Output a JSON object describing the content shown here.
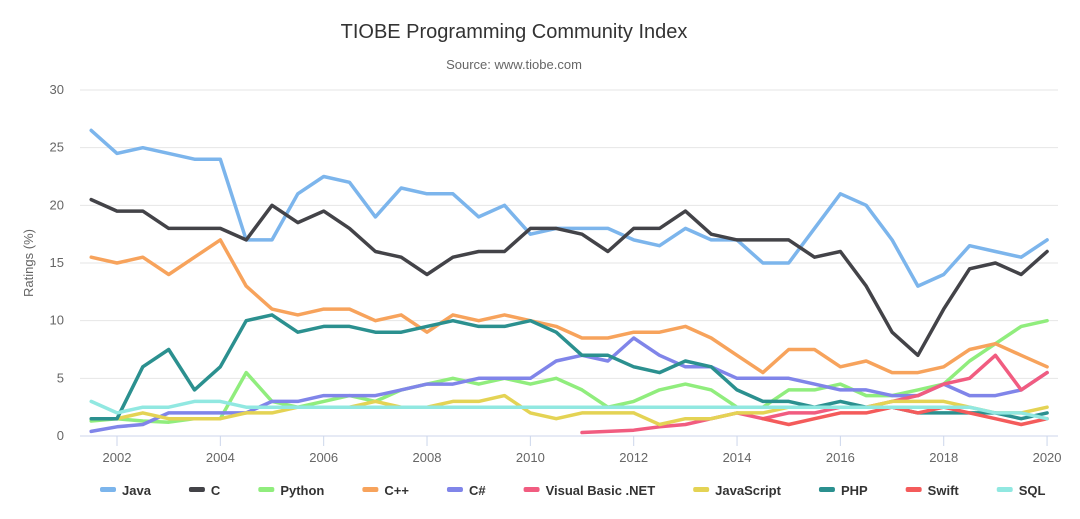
{
  "chart_data": {
    "type": "line",
    "title": "TIOBE Programming Community Index",
    "subtitle": "Source: www.tiobe.com",
    "xlabel": "",
    "ylabel": "Ratings (%)",
    "ylim": [
      0,
      30
    ],
    "xlim": [
      2001.4,
      2020.2
    ],
    "yticks": [
      0,
      5,
      10,
      15,
      20,
      25,
      30
    ],
    "xticks": [
      2002,
      2004,
      2006,
      2008,
      2010,
      2012,
      2014,
      2016,
      2018,
      2020
    ],
    "grid": true,
    "legend_position": "bottom",
    "x": [
      2001.5,
      2002,
      2002.5,
      2003,
      2003.5,
      2004,
      2004.5,
      2005,
      2005.5,
      2006,
      2006.5,
      2007,
      2007.5,
      2008,
      2008.5,
      2009,
      2009.5,
      2010,
      2010.5,
      2011,
      2011.5,
      2012,
      2012.5,
      2013,
      2013.5,
      2014,
      2014.5,
      2015,
      2015.5,
      2016,
      2016.5,
      2017,
      2017.5,
      2018,
      2018.5,
      2019,
      2019.5,
      2020
    ],
    "series": [
      {
        "name": "Java",
        "color": "#7cb5ec",
        "values": [
          26.5,
          24.5,
          25,
          24.5,
          24,
          24,
          17,
          17,
          21,
          22.5,
          22,
          19,
          21.5,
          21,
          21,
          19,
          20,
          17.5,
          18,
          18,
          18,
          17,
          16.5,
          18,
          17,
          17,
          15,
          15,
          18,
          21,
          20,
          17,
          13,
          14,
          16.5,
          16,
          15.5,
          17
        ]
      },
      {
        "name": "C",
        "color": "#434348",
        "values": [
          20.5,
          19.5,
          19.5,
          18,
          18,
          18,
          17,
          20,
          18.5,
          19.5,
          18,
          16,
          15.5,
          14,
          15.5,
          16,
          16,
          18,
          18,
          17.5,
          16,
          18,
          18,
          19.5,
          17.5,
          17,
          17,
          17,
          15.5,
          16,
          13,
          9,
          7,
          11,
          14.5,
          15,
          14,
          16
        ]
      },
      {
        "name": "Python",
        "color": "#90ed7d",
        "values": [
          1.3,
          1.5,
          1.3,
          1.2,
          1.5,
          1.5,
          5.5,
          3,
          2.5,
          3,
          3.5,
          3,
          4,
          4.5,
          5,
          4.5,
          5,
          4.5,
          5,
          4,
          2.5,
          3,
          4,
          4.5,
          4,
          2.5,
          2.5,
          4,
          4,
          4.5,
          3.5,
          3.5,
          4,
          4.5,
          6.5,
          8,
          9.5,
          10
        ]
      },
      {
        "name": "C++",
        "color": "#f7a35c",
        "values": [
          15.5,
          15,
          15.5,
          14,
          15.5,
          17,
          13,
          11,
          10.5,
          11,
          11,
          10,
          10.5,
          9,
          10.5,
          10,
          10.5,
          10,
          9.5,
          8.5,
          8.5,
          9,
          9,
          9.5,
          8.5,
          7,
          5.5,
          7.5,
          7.5,
          6,
          6.5,
          5.5,
          5.5,
          6,
          7.5,
          8,
          7,
          6
        ]
      },
      {
        "name": "C#",
        "color": "#8085e9",
        "values": [
          0.4,
          0.8,
          1,
          2,
          2,
          2,
          2,
          3,
          3,
          3.5,
          3.5,
          3.5,
          4,
          4.5,
          4.5,
          5,
          5,
          5,
          6.5,
          7,
          6.5,
          8.5,
          7,
          6,
          6,
          5,
          5,
          5,
          4.5,
          4,
          4,
          3.5,
          3.5,
          4.5,
          3.5,
          3.5,
          4,
          5.5
        ]
      },
      {
        "name": "Visual Basic .NET",
        "color": "#f15c80",
        "values": [
          null,
          null,
          null,
          null,
          null,
          null,
          null,
          null,
          null,
          null,
          null,
          null,
          null,
          null,
          null,
          null,
          null,
          null,
          null,
          0.3,
          0.4,
          0.5,
          0.8,
          1,
          1.5,
          2,
          1.5,
          2,
          2,
          2.5,
          2.5,
          3,
          3.5,
          4.5,
          5,
          7,
          4,
          5.5
        ]
      },
      {
        "name": "JavaScript",
        "color": "#e4d354",
        "values": [
          1.5,
          1.5,
          2,
          1.5,
          1.5,
          1.5,
          2,
          2,
          2.5,
          2.5,
          2.5,
          3,
          2.5,
          2.5,
          3,
          3,
          3.5,
          2,
          1.5,
          2,
          2,
          2,
          1,
          1.5,
          1.5,
          2,
          2,
          2.5,
          2.5,
          2.5,
          2.5,
          3,
          3,
          3,
          2.5,
          2,
          2,
          2.5
        ]
      },
      {
        "name": "PHP",
        "color": "#2b908f",
        "values": [
          1.5,
          1.5,
          6,
          7.5,
          4,
          6,
          10,
          10.5,
          9,
          9.5,
          9.5,
          9,
          9,
          9.5,
          10,
          9.5,
          9.5,
          10,
          9,
          7,
          7,
          6,
          5.5,
          6.5,
          6,
          4,
          3,
          3,
          2.5,
          3,
          2.5,
          2.5,
          2,
          2,
          2,
          2,
          1.5,
          2
        ]
      },
      {
        "name": "Swift",
        "color": "#f45b5b",
        "values": [
          null,
          null,
          null,
          null,
          null,
          null,
          null,
          null,
          null,
          null,
          null,
          null,
          null,
          null,
          null,
          null,
          null,
          null,
          null,
          null,
          null,
          null,
          null,
          null,
          null,
          null,
          1.5,
          1,
          1.5,
          2,
          2,
          2.5,
          2,
          2.5,
          2,
          1.5,
          1,
          1.5
        ]
      },
      {
        "name": "SQL",
        "color": "#91e8e1",
        "values": [
          3,
          2,
          2.5,
          2.5,
          3,
          3,
          2.5,
          2.5,
          2.5,
          2.5,
          2.5,
          2.5,
          2.5,
          2.5,
          2.5,
          2.5,
          2.5,
          2.5,
          2.5,
          2.5,
          2.5,
          2.5,
          2.5,
          2.5,
          2.5,
          2.5,
          2.5,
          2.5,
          2.5,
          2.5,
          2.5,
          2.5,
          2.5,
          2.5,
          2.5,
          2,
          2,
          1.5
        ]
      }
    ]
  }
}
